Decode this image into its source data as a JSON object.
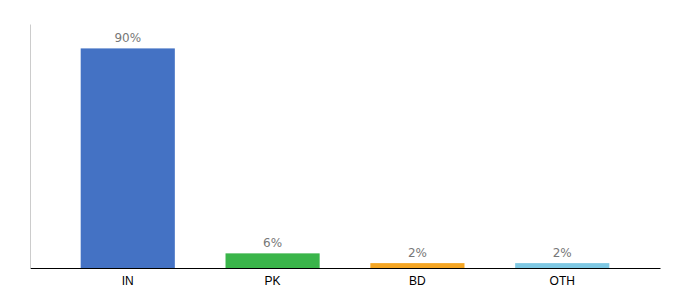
{
  "chart_data": {
    "type": "bar",
    "categories": [
      "IN",
      "PK",
      "BD",
      "OTH"
    ],
    "values": [
      90,
      6,
      2,
      2
    ],
    "value_labels": [
      "90%",
      "6%",
      "2%",
      "2%"
    ],
    "colors": [
      "#4472c4",
      "#3ab54a",
      "#f5a623",
      "#7ec8e3"
    ],
    "ylim": [
      0,
      100
    ],
    "data_labels": true,
    "tick_labels": "x"
  }
}
